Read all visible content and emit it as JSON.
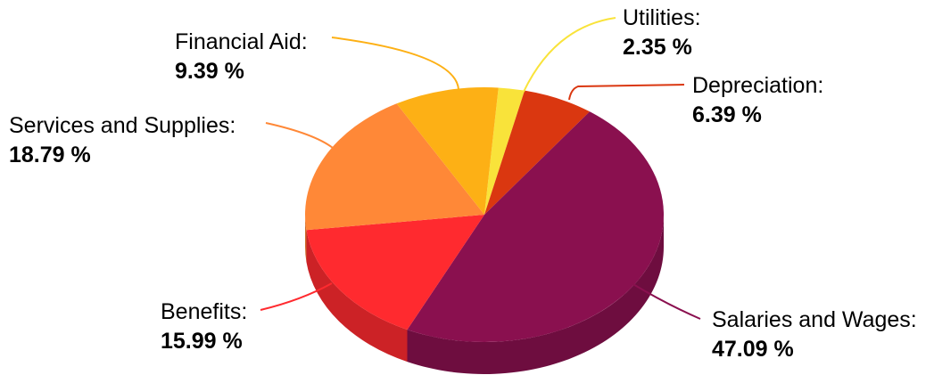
{
  "chart_data": {
    "type": "pie",
    "title": "",
    "legend": "none",
    "label_style": "callout",
    "slices": [
      {
        "label": "Utilities:",
        "value": 2.35,
        "value_text": "2.35 %",
        "color": "#F9E33A"
      },
      {
        "label": "Depreciation:",
        "value": 6.39,
        "value_text": "6.39 %",
        "color": "#DA3710"
      },
      {
        "label": "Salaries and Wages:",
        "value": 47.09,
        "value_text": "47.09 %",
        "color": "#8A104F"
      },
      {
        "label": "Benefits:",
        "value": 15.99,
        "value_text": "15.99 %",
        "color": "#FF2A2F"
      },
      {
        "label": "Services and Supplies:",
        "value": 18.79,
        "value_text": "18.79 %",
        "color": "#FF8837"
      },
      {
        "label": "Financial Aid:",
        "value": 9.39,
        "value_text": "9.39 %",
        "color": "#FDB015"
      }
    ]
  }
}
